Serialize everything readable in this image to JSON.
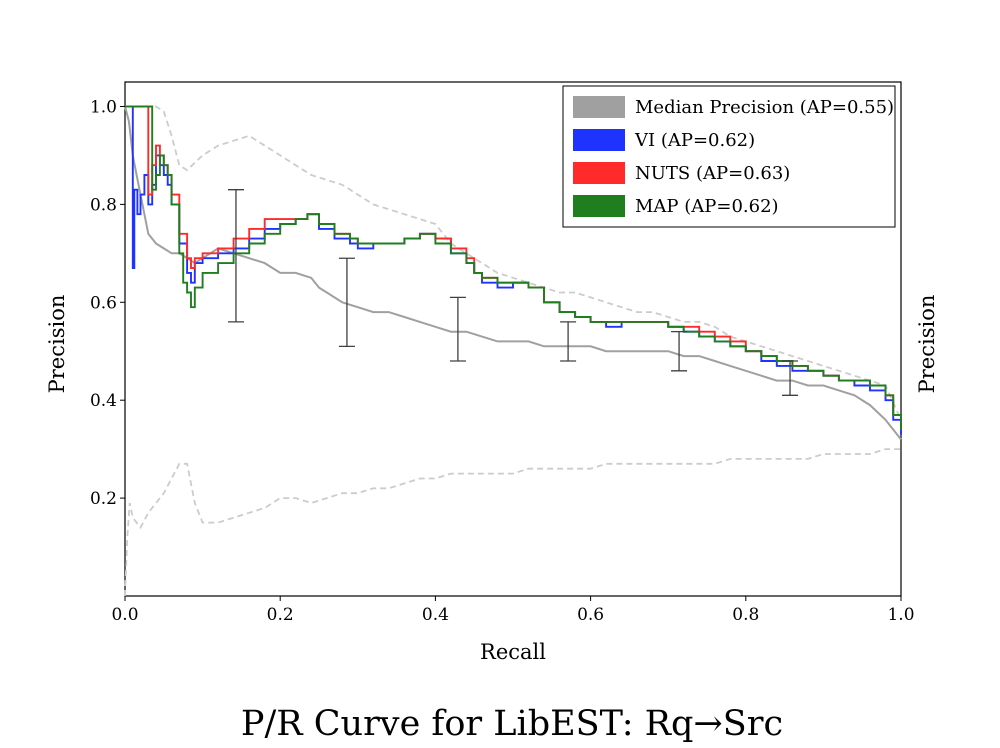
{
  "chart_data": {
    "type": "line",
    "title": "P/R Curve for LibEST: Rq→Src",
    "xlabel": "Recall",
    "ylabel": "Precision",
    "ylabel_right": "Precision",
    "xlim": [
      0,
      1
    ],
    "ylim": [
      0,
      1.05
    ],
    "xticks": [
      0.0,
      0.2,
      0.4,
      0.6,
      0.8,
      1.0
    ],
    "xtick_labels": [
      "0.0",
      "0.2",
      "0.4",
      "0.6",
      "0.8",
      "1.0"
    ],
    "yticks": [
      0.2,
      0.4,
      0.6,
      0.8,
      1.0
    ],
    "ytick_labels": [
      "0.2",
      "0.4",
      "0.6",
      "0.8",
      "1.0"
    ],
    "grid": false,
    "legend_position": "top-right",
    "colors": {
      "median": "#a0a0a0",
      "vi": "#1f33ff",
      "nuts": "#ff2a2a",
      "map": "#1f7f1f",
      "envelope": "#cccccc",
      "errorbar": "#404040"
    },
    "legend": [
      {
        "label": "Median Precision (AP=0.55)",
        "color": "#a0a0a0"
      },
      {
        "label": "VI (AP=0.62)",
        "color": "#1f33ff"
      },
      {
        "label": "NUTS (AP=0.63)",
        "color": "#ff2a2a"
      },
      {
        "label": "MAP (AP=0.62)",
        "color": "#1f7f1f"
      }
    ],
    "series": [
      {
        "name": "Median Precision (AP=0.55)",
        "style": "solid",
        "x": [
          0.0,
          0.005,
          0.01,
          0.015,
          0.02,
          0.025,
          0.03,
          0.04,
          0.05,
          0.06,
          0.07,
          0.08,
          0.09,
          0.1,
          0.11,
          0.12,
          0.14,
          0.16,
          0.18,
          0.2,
          0.22,
          0.24,
          0.25,
          0.26,
          0.28,
          0.3,
          0.32,
          0.34,
          0.36,
          0.38,
          0.4,
          0.42,
          0.44,
          0.46,
          0.48,
          0.5,
          0.52,
          0.54,
          0.56,
          0.58,
          0.6,
          0.62,
          0.64,
          0.66,
          0.68,
          0.7,
          0.72,
          0.74,
          0.76,
          0.78,
          0.8,
          0.82,
          0.84,
          0.86,
          0.88,
          0.9,
          0.92,
          0.94,
          0.96,
          0.98,
          1.0
        ],
        "y": [
          1.0,
          0.97,
          0.9,
          0.86,
          0.82,
          0.78,
          0.74,
          0.72,
          0.71,
          0.7,
          0.7,
          0.69,
          0.68,
          0.69,
          0.7,
          0.71,
          0.7,
          0.69,
          0.68,
          0.66,
          0.66,
          0.65,
          0.63,
          0.62,
          0.6,
          0.59,
          0.58,
          0.58,
          0.57,
          0.56,
          0.55,
          0.54,
          0.54,
          0.53,
          0.52,
          0.52,
          0.52,
          0.51,
          0.51,
          0.51,
          0.51,
          0.5,
          0.5,
          0.5,
          0.5,
          0.5,
          0.49,
          0.49,
          0.48,
          0.47,
          0.46,
          0.45,
          0.44,
          0.44,
          0.43,
          0.43,
          0.42,
          0.41,
          0.39,
          0.36,
          0.32
        ]
      },
      {
        "name": "VI (AP=0.62)",
        "style": "step",
        "x": [
          0.0,
          0.01,
          0.012,
          0.016,
          0.02,
          0.025,
          0.03,
          0.035,
          0.04,
          0.045,
          0.05,
          0.055,
          0.06,
          0.07,
          0.08,
          0.085,
          0.09,
          0.1,
          0.12,
          0.14,
          0.16,
          0.18,
          0.2,
          0.22,
          0.235,
          0.25,
          0.27,
          0.29,
          0.3,
          0.32,
          0.34,
          0.36,
          0.38,
          0.4,
          0.42,
          0.44,
          0.45,
          0.46,
          0.48,
          0.5,
          0.52,
          0.54,
          0.56,
          0.58,
          0.6,
          0.62,
          0.64,
          0.66,
          0.68,
          0.7,
          0.72,
          0.74,
          0.76,
          0.78,
          0.8,
          0.82,
          0.84,
          0.86,
          0.88,
          0.9,
          0.92,
          0.94,
          0.96,
          0.98,
          0.99,
          1.0
        ],
        "y": [
          1.0,
          0.67,
          0.83,
          0.78,
          0.82,
          0.86,
          0.8,
          0.84,
          0.9,
          0.88,
          0.86,
          0.84,
          0.8,
          0.72,
          0.66,
          0.64,
          0.68,
          0.69,
          0.7,
          0.71,
          0.73,
          0.75,
          0.76,
          0.77,
          0.78,
          0.75,
          0.73,
          0.72,
          0.71,
          0.72,
          0.72,
          0.73,
          0.74,
          0.73,
          0.7,
          0.68,
          0.66,
          0.64,
          0.63,
          0.64,
          0.63,
          0.6,
          0.58,
          0.57,
          0.56,
          0.55,
          0.56,
          0.56,
          0.56,
          0.55,
          0.54,
          0.53,
          0.52,
          0.51,
          0.5,
          0.48,
          0.47,
          0.46,
          0.46,
          0.45,
          0.44,
          0.43,
          0.42,
          0.4,
          0.36,
          0.33
        ]
      },
      {
        "name": "NUTS (AP=0.63)",
        "style": "step",
        "x": [
          0.0,
          0.03,
          0.035,
          0.04,
          0.045,
          0.05,
          0.055,
          0.06,
          0.07,
          0.08,
          0.085,
          0.09,
          0.1,
          0.12,
          0.14,
          0.16,
          0.18,
          0.2,
          0.22,
          0.235,
          0.25,
          0.27,
          0.29,
          0.3,
          0.32,
          0.34,
          0.36,
          0.38,
          0.4,
          0.42,
          0.44,
          0.45,
          0.46,
          0.48,
          0.5,
          0.52,
          0.54,
          0.56,
          0.58,
          0.6,
          0.62,
          0.64,
          0.66,
          0.68,
          0.7,
          0.72,
          0.74,
          0.76,
          0.78,
          0.8,
          0.82,
          0.84,
          0.86,
          0.88,
          0.9,
          0.92,
          0.94,
          0.96,
          0.98,
          0.99,
          1.0
        ],
        "y": [
          1.0,
          0.82,
          0.88,
          0.92,
          0.9,
          0.88,
          0.86,
          0.82,
          0.74,
          0.69,
          0.67,
          0.69,
          0.7,
          0.71,
          0.73,
          0.75,
          0.77,
          0.77,
          0.77,
          0.78,
          0.76,
          0.74,
          0.73,
          0.72,
          0.72,
          0.72,
          0.73,
          0.74,
          0.73,
          0.71,
          0.69,
          0.66,
          0.65,
          0.64,
          0.64,
          0.63,
          0.6,
          0.58,
          0.57,
          0.56,
          0.56,
          0.56,
          0.56,
          0.56,
          0.55,
          0.55,
          0.54,
          0.53,
          0.52,
          0.5,
          0.49,
          0.48,
          0.47,
          0.46,
          0.45,
          0.44,
          0.44,
          0.43,
          0.41,
          0.37,
          0.34
        ]
      },
      {
        "name": "MAP (AP=0.62)",
        "style": "step",
        "x": [
          0.0,
          0.035,
          0.04,
          0.045,
          0.05,
          0.055,
          0.06,
          0.07,
          0.075,
          0.08,
          0.085,
          0.09,
          0.1,
          0.12,
          0.14,
          0.16,
          0.18,
          0.2,
          0.22,
          0.235,
          0.25,
          0.27,
          0.29,
          0.3,
          0.32,
          0.34,
          0.36,
          0.38,
          0.4,
          0.42,
          0.44,
          0.45,
          0.46,
          0.48,
          0.5,
          0.52,
          0.54,
          0.56,
          0.58,
          0.6,
          0.62,
          0.64,
          0.66,
          0.68,
          0.7,
          0.72,
          0.74,
          0.76,
          0.78,
          0.8,
          0.82,
          0.84,
          0.86,
          0.88,
          0.9,
          0.92,
          0.94,
          0.96,
          0.98,
          0.99,
          1.0
        ],
        "y": [
          1.0,
          0.83,
          0.86,
          0.9,
          0.88,
          0.86,
          0.8,
          0.7,
          0.64,
          0.62,
          0.59,
          0.63,
          0.66,
          0.68,
          0.7,
          0.72,
          0.74,
          0.76,
          0.77,
          0.78,
          0.76,
          0.74,
          0.73,
          0.72,
          0.72,
          0.72,
          0.73,
          0.74,
          0.72,
          0.7,
          0.68,
          0.66,
          0.65,
          0.64,
          0.64,
          0.63,
          0.6,
          0.58,
          0.57,
          0.56,
          0.56,
          0.56,
          0.56,
          0.56,
          0.55,
          0.54,
          0.53,
          0.52,
          0.51,
          0.5,
          0.49,
          0.48,
          0.47,
          0.46,
          0.45,
          0.44,
          0.44,
          0.43,
          0.41,
          0.37,
          0.34
        ]
      },
      {
        "name": "",
        "style": "dashed",
        "x": [
          0.0,
          0.04,
          0.05,
          0.06,
          0.07,
          0.08,
          0.1,
          0.12,
          0.14,
          0.16,
          0.18,
          0.2,
          0.22,
          0.24,
          0.26,
          0.28,
          0.3,
          0.32,
          0.34,
          0.36,
          0.38,
          0.4,
          0.42,
          0.44,
          0.46,
          0.48,
          0.5,
          0.52,
          0.54,
          0.56,
          0.58,
          0.6,
          0.62,
          0.64,
          0.66,
          0.68,
          0.7,
          0.72,
          0.74,
          0.76,
          0.78,
          0.8,
          0.82,
          0.84,
          0.86,
          0.88,
          0.9,
          0.92,
          0.94,
          0.96,
          0.98,
          1.0
        ],
        "y": [
          1.0,
          1.0,
          0.99,
          0.94,
          0.88,
          0.87,
          0.9,
          0.92,
          0.93,
          0.94,
          0.92,
          0.9,
          0.88,
          0.86,
          0.85,
          0.84,
          0.82,
          0.8,
          0.79,
          0.78,
          0.77,
          0.76,
          0.72,
          0.7,
          0.68,
          0.66,
          0.65,
          0.64,
          0.63,
          0.62,
          0.62,
          0.61,
          0.6,
          0.59,
          0.58,
          0.58,
          0.57,
          0.56,
          0.56,
          0.55,
          0.53,
          0.52,
          0.51,
          0.5,
          0.49,
          0.48,
          0.47,
          0.46,
          0.45,
          0.44,
          0.43,
          0.36
        ]
      },
      {
        "name": "",
        "style": "dashed",
        "x": [
          0.0,
          0.003,
          0.006,
          0.01,
          0.015,
          0.02,
          0.03,
          0.04,
          0.05,
          0.06,
          0.07,
          0.08,
          0.09,
          0.1,
          0.12,
          0.14,
          0.16,
          0.18,
          0.2,
          0.22,
          0.24,
          0.26,
          0.28,
          0.3,
          0.32,
          0.34,
          0.36,
          0.38,
          0.4,
          0.42,
          0.44,
          0.46,
          0.48,
          0.5,
          0.52,
          0.54,
          0.56,
          0.58,
          0.6,
          0.62,
          0.64,
          0.66,
          0.68,
          0.7,
          0.72,
          0.74,
          0.76,
          0.78,
          0.8,
          0.82,
          0.84,
          0.86,
          0.88,
          0.9,
          0.92,
          0.94,
          0.96,
          0.98,
          1.0
        ],
        "y": [
          0.0,
          0.12,
          0.19,
          0.16,
          0.15,
          0.14,
          0.17,
          0.19,
          0.21,
          0.24,
          0.27,
          0.27,
          0.19,
          0.15,
          0.15,
          0.16,
          0.17,
          0.18,
          0.2,
          0.2,
          0.19,
          0.2,
          0.21,
          0.21,
          0.22,
          0.22,
          0.23,
          0.24,
          0.24,
          0.25,
          0.25,
          0.25,
          0.25,
          0.25,
          0.26,
          0.26,
          0.26,
          0.26,
          0.26,
          0.27,
          0.27,
          0.27,
          0.27,
          0.27,
          0.27,
          0.27,
          0.27,
          0.28,
          0.28,
          0.28,
          0.28,
          0.28,
          0.28,
          0.29,
          0.29,
          0.29,
          0.29,
          0.3,
          0.3
        ]
      }
    ],
    "error_bars": [
      {
        "x": 0.143,
        "low": 0.56,
        "high": 0.83
      },
      {
        "x": 0.286,
        "low": 0.51,
        "high": 0.69
      },
      {
        "x": 0.429,
        "low": 0.48,
        "high": 0.61
      },
      {
        "x": 0.571,
        "low": 0.48,
        "high": 0.56
      },
      {
        "x": 0.714,
        "low": 0.46,
        "high": 0.54
      },
      {
        "x": 0.857,
        "low": 0.41,
        "high": 0.48
      }
    ]
  }
}
